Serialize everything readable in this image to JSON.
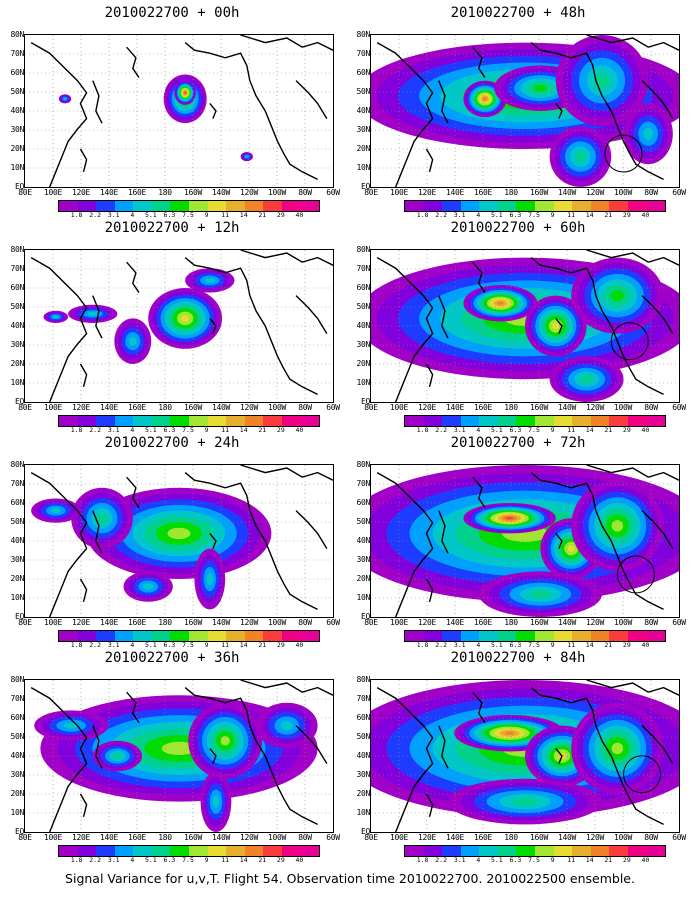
{
  "caption": "Signal Variance for u,v,T. Flight 54. Observation time 2010022700. 2010022500 ensemble.",
  "lat_labels": [
    "80N",
    "70N",
    "60N",
    "50N",
    "40N",
    "30N",
    "20N",
    "10N",
    "EQ"
  ],
  "lon_labels": [
    "80E",
    "100E",
    "120E",
    "140E",
    "160E",
    "180",
    "160W",
    "140W",
    "120W",
    "100W",
    "80W",
    "60W"
  ],
  "colorbar": {
    "labels": [
      "1.8",
      "2.2",
      "3.1",
      "4",
      "5.1",
      "6.3",
      "7.5",
      "9",
      "11",
      "14",
      "21",
      "29",
      "40"
    ],
    "colors": [
      "#a000c8",
      "#8200dc",
      "#1e3cff",
      "#00a0ff",
      "#00c8c8",
      "#00d28c",
      "#00dc00",
      "#a0e632",
      "#e6dc32",
      "#e6af2d",
      "#f08228",
      "#fa3c3c",
      "#f00082"
    ]
  },
  "panels": [
    {
      "id": "p00",
      "title": "2010022700 + 00h",
      "col": 0,
      "row": 0,
      "extent": 0.2,
      "labels_600": false,
      "blobs": [
        [
          0.52,
          0.42,
          0.07,
          0.16,
          0.55
        ],
        [
          0.52,
          0.38,
          0.035,
          0.08,
          0.9
        ],
        [
          0.13,
          0.42,
          0.02,
          0.03,
          0.3
        ],
        [
          0.72,
          0.8,
          0.02,
          0.03,
          0.3
        ]
      ],
      "circle": null
    },
    {
      "id": "p12",
      "title": "2010022700 + 12h",
      "col": 0,
      "row": 1,
      "extent": 0.4,
      "labels_600": false,
      "blobs": [
        [
          0.52,
          0.45,
          0.12,
          0.2,
          0.65
        ],
        [
          0.22,
          0.42,
          0.08,
          0.06,
          0.3
        ],
        [
          0.35,
          0.6,
          0.06,
          0.15,
          0.3
        ],
        [
          0.1,
          0.44,
          0.04,
          0.04,
          0.3
        ],
        [
          0.6,
          0.2,
          0.08,
          0.08,
          0.35
        ]
      ],
      "circle": null
    },
    {
      "id": "p24",
      "title": "2010022700 + 24h",
      "col": 0,
      "row": 2,
      "extent": 0.55,
      "labels_600": false,
      "blobs": [
        [
          0.5,
          0.45,
          0.3,
          0.3,
          0.6
        ],
        [
          0.25,
          0.35,
          0.1,
          0.2,
          0.4
        ],
        [
          0.1,
          0.3,
          0.08,
          0.08,
          0.35
        ],
        [
          0.6,
          0.75,
          0.05,
          0.2,
          0.35
        ],
        [
          0.4,
          0.8,
          0.08,
          0.1,
          0.3
        ]
      ],
      "circle": null
    },
    {
      "id": "p36",
      "title": "2010022700 + 36h",
      "col": 0,
      "row": 3,
      "extent": 0.7,
      "labels_600": false,
      "blobs": [
        [
          0.5,
          0.45,
          0.45,
          0.35,
          0.6
        ],
        [
          0.3,
          0.5,
          0.08,
          0.1,
          0.45
        ],
        [
          0.65,
          0.4,
          0.12,
          0.25,
          0.55
        ],
        [
          0.15,
          0.3,
          0.12,
          0.1,
          0.35
        ],
        [
          0.62,
          0.8,
          0.05,
          0.2,
          0.35
        ],
        [
          0.85,
          0.3,
          0.1,
          0.15,
          0.35
        ]
      ],
      "circle": null
    },
    {
      "id": "p48",
      "title": "2010022700 + 48h",
      "col": 1,
      "row": 0,
      "extent": 0.8,
      "labels_600": true,
      "blobs": [
        [
          0.5,
          0.4,
          0.55,
          0.35,
          0.55
        ],
        [
          0.37,
          0.42,
          0.07,
          0.12,
          0.8
        ],
        [
          0.55,
          0.35,
          0.15,
          0.15,
          0.5
        ],
        [
          0.75,
          0.3,
          0.15,
          0.3,
          0.45
        ],
        [
          0.68,
          0.8,
          0.1,
          0.2,
          0.4
        ],
        [
          0.9,
          0.65,
          0.08,
          0.2,
          0.35
        ]
      ],
      "circle": [
        0.82,
        0.78,
        0.06
      ]
    },
    {
      "id": "p60",
      "title": "2010022700 + 60h",
      "col": 1,
      "row": 1,
      "extent": 0.85,
      "labels_600": true,
      "blobs": [
        [
          0.5,
          0.45,
          0.55,
          0.4,
          0.6
        ],
        [
          0.42,
          0.35,
          0.12,
          0.12,
          0.85
        ],
        [
          0.6,
          0.5,
          0.1,
          0.2,
          0.7
        ],
        [
          0.8,
          0.3,
          0.15,
          0.25,
          0.5
        ],
        [
          0.7,
          0.85,
          0.12,
          0.15,
          0.4
        ]
      ],
      "circle": [
        0.84,
        0.6,
        0.06
      ]
    },
    {
      "id": "p72",
      "title": "2010022700 + 72h",
      "col": 1,
      "row": 2,
      "extent": 0.9,
      "labels_600": true,
      "blobs": [
        [
          0.5,
          0.45,
          0.6,
          0.45,
          0.6
        ],
        [
          0.45,
          0.35,
          0.15,
          0.1,
          0.9
        ],
        [
          0.65,
          0.55,
          0.1,
          0.2,
          0.7
        ],
        [
          0.8,
          0.4,
          0.15,
          0.3,
          0.55
        ],
        [
          0.55,
          0.85,
          0.2,
          0.15,
          0.4
        ]
      ],
      "circle": [
        0.86,
        0.72,
        0.06
      ]
    },
    {
      "id": "p84",
      "title": "2010022700 + 84h",
      "col": 1,
      "row": 3,
      "extent": 0.9,
      "labels_600": true,
      "blobs": [
        [
          0.5,
          0.45,
          0.6,
          0.45,
          0.6
        ],
        [
          0.45,
          0.35,
          0.18,
          0.12,
          0.85
        ],
        [
          0.62,
          0.5,
          0.12,
          0.2,
          0.7
        ],
        [
          0.8,
          0.45,
          0.15,
          0.3,
          0.55
        ],
        [
          0.5,
          0.8,
          0.25,
          0.15,
          0.45
        ]
      ],
      "circle": [
        0.88,
        0.62,
        0.06
      ]
    }
  ]
}
